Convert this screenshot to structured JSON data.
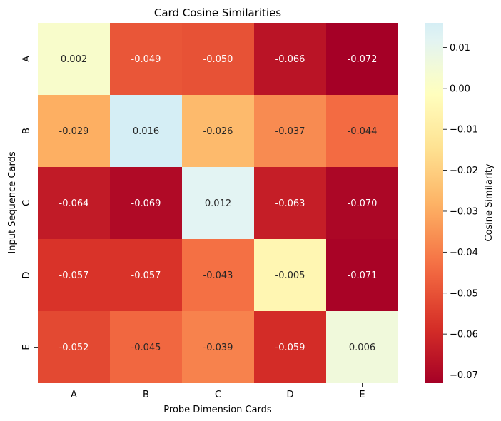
{
  "chart_data": {
    "type": "heatmap",
    "title": "Card Cosine Similarities",
    "xlabel": "Probe Dimension Cards",
    "ylabel": "Input Sequence Cards",
    "x_categories": [
      "A",
      "B",
      "C",
      "D",
      "E"
    ],
    "y_categories": [
      "A",
      "B",
      "C",
      "D",
      "E"
    ],
    "values": [
      [
        0.002,
        -0.049,
        -0.05,
        -0.066,
        -0.072
      ],
      [
        -0.029,
        0.016,
        -0.026,
        -0.037,
        -0.044
      ],
      [
        -0.064,
        -0.069,
        0.012,
        -0.063,
        -0.07
      ],
      [
        -0.057,
        -0.057,
        -0.043,
        -0.005,
        -0.071
      ],
      [
        -0.052,
        -0.045,
        -0.039,
        -0.059,
        0.006
      ]
    ],
    "annotations": [
      [
        "0.002",
        "-0.049",
        "-0.050",
        "-0.066",
        "-0.072"
      ],
      [
        "-0.029",
        "0.016",
        "-0.026",
        "-0.037",
        "-0.044"
      ],
      [
        "-0.064",
        "-0.069",
        "0.012",
        "-0.063",
        "-0.070"
      ],
      [
        "-0.057",
        "-0.057",
        "-0.043",
        "-0.005",
        "-0.071"
      ],
      [
        "-0.052",
        "-0.045",
        "-0.039",
        "-0.059",
        "0.006"
      ]
    ],
    "colormap": "RdYlBu",
    "vmin": -0.072,
    "vmax": 0.016,
    "colorbar": {
      "label": "Cosine Similarity",
      "ticks": [
        0.01,
        0.0,
        -0.01,
        -0.02,
        -0.03,
        -0.04,
        -0.05,
        -0.06,
        -0.07
      ],
      "tick_labels": [
        "0.01",
        "0.00",
        "−0.01",
        "−0.02",
        "−0.03",
        "−0.04",
        "−0.05",
        "−0.06",
        "−0.07"
      ]
    }
  }
}
